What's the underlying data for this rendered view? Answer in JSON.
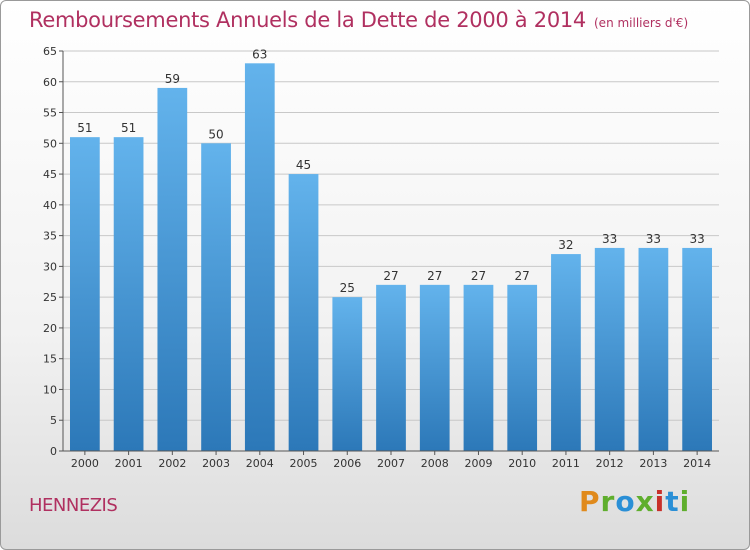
{
  "title": "Remboursements Annuels de la Dette de 2000 à 2014",
  "subtitle": "(en milliers d'€)",
  "commune": "HENNEZIS",
  "logo": "Proxiti",
  "colors": {
    "title": "#b03060",
    "bar_top": "#63b3ec",
    "bar_bottom": "#2c78b8",
    "grid": "#c8c8c8"
  },
  "chart_data": {
    "type": "bar",
    "title": "Remboursements Annuels de la Dette de 2000 à 2014",
    "xlabel": "",
    "ylabel": "",
    "categories": [
      "2000",
      "2001",
      "2002",
      "2003",
      "2004",
      "2005",
      "2006",
      "2007",
      "2008",
      "2009",
      "2010",
      "2011",
      "2012",
      "2013",
      "2014"
    ],
    "values": [
      51,
      51,
      59,
      50,
      63,
      45,
      25,
      27,
      27,
      27,
      27,
      32,
      33,
      33,
      33
    ],
    "ylim": [
      0,
      65
    ],
    "yticks": [
      0,
      5,
      10,
      15,
      20,
      25,
      30,
      35,
      40,
      45,
      50,
      55,
      60,
      65
    ],
    "grid": true,
    "unit": "milliers d'€"
  }
}
